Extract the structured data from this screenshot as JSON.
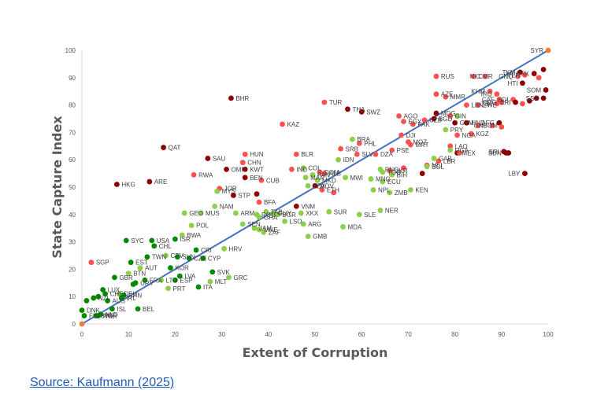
{
  "source": {
    "label": "Source: Kaufmann (2025)"
  },
  "colors": {
    "dark_red": "#8b0000",
    "red": "#ff5050",
    "light_green": "#8bd04a",
    "dark_green": "#008a00",
    "endpoint": "#ed7d31",
    "line": "#4472c4",
    "axis": "#d9d9d9"
  },
  "chart_data": {
    "type": "scatter",
    "title": "",
    "xlabel": "Extent of Corruption",
    "ylabel": "State Capture Index",
    "xlim": [
      0,
      100
    ],
    "ylim": [
      0,
      100
    ],
    "xticks": [
      0,
      10,
      20,
      30,
      40,
      50,
      60,
      70,
      80,
      90,
      100
    ],
    "yticks": [
      0,
      10,
      20,
      30,
      40,
      50,
      60,
      70,
      80,
      90,
      100
    ],
    "grid": false,
    "legend": "none",
    "trendline": {
      "from": [
        0,
        0
      ],
      "to": [
        100,
        100
      ]
    },
    "points": [
      {
        "label": "SYR",
        "x": 100,
        "y": 100,
        "c": "endpoint"
      },
      {
        "label": "",
        "x": 0,
        "y": 0,
        "c": "endpoint"
      },
      {
        "label": "BHR",
        "x": 32,
        "y": 82.5,
        "c": "dark_red"
      },
      {
        "label": "QAT",
        "x": 17.5,
        "y": 64.5,
        "c": "dark_red"
      },
      {
        "label": "SAU",
        "x": 27,
        "y": 60.5,
        "c": "dark_red"
      },
      {
        "label": "HKG",
        "x": 7.5,
        "y": 51,
        "c": "dark_red"
      },
      {
        "label": "ARE",
        "x": 14.5,
        "y": 52,
        "c": "dark_red"
      },
      {
        "label": "RWA",
        "x": 24,
        "y": 54.5,
        "c": "red"
      },
      {
        "label": "OMN",
        "x": 31,
        "y": 56.5,
        "c": "dark_red"
      },
      {
        "label": "HUN",
        "x": 35,
        "y": 62,
        "c": "red"
      },
      {
        "label": "CHN",
        "x": 34.5,
        "y": 59,
        "c": "red"
      },
      {
        "label": "KWT",
        "x": 35,
        "y": 56.5,
        "c": "dark_red"
      },
      {
        "label": "BEN",
        "x": 35,
        "y": 53.5,
        "c": "dark_red"
      },
      {
        "label": "CUB",
        "x": 38.5,
        "y": 52.5,
        "c": "red"
      },
      {
        "label": "JOR",
        "x": 29.5,
        "y": 49.5,
        "c": "red"
      },
      {
        "label": "MYS",
        "x": 29,
        "y": 48.5,
        "c": "light_green"
      },
      {
        "label": "STP",
        "x": 32.5,
        "y": 47,
        "c": "dark_red"
      },
      {
        "label": "BFA",
        "x": 38,
        "y": 44.5,
        "c": "red"
      },
      {
        "label": "",
        "x": 37.5,
        "y": 47.5,
        "c": "dark_red"
      },
      {
        "label": "BLR",
        "x": 46,
        "y": 62,
        "c": "red"
      },
      {
        "label": "IND",
        "x": 45,
        "y": 56.5,
        "c": "red"
      },
      {
        "label": "COL",
        "x": 47.5,
        "y": 57,
        "c": "light_green"
      },
      {
        "label": "KAZ",
        "x": 43,
        "y": 73,
        "c": "red"
      },
      {
        "label": "TUR",
        "x": 52,
        "y": 81,
        "c": "red"
      },
      {
        "label": "THA",
        "x": 57,
        "y": 78.5,
        "c": "dark_red"
      },
      {
        "label": "SWZ",
        "x": 60,
        "y": 77.5,
        "c": "dark_red"
      },
      {
        "label": "RUS",
        "x": 76,
        "y": 90.5,
        "c": "red"
      },
      {
        "label": "CMR",
        "x": 84,
        "y": 90.5,
        "c": "red"
      },
      {
        "label": "NIC",
        "x": 86.5,
        "y": 90.5,
        "c": "red"
      },
      {
        "label": "AGO",
        "x": 68,
        "y": 76,
        "c": "red"
      },
      {
        "label": "EGY",
        "x": 69,
        "y": 74,
        "c": "red"
      },
      {
        "label": "PAK",
        "x": 71,
        "y": 73,
        "c": "red"
      },
      {
        "label": "AZE",
        "x": 76,
        "y": 84,
        "c": "red"
      },
      {
        "label": "MMR",
        "x": 78,
        "y": 83,
        "c": "red"
      },
      {
        "label": "MDG",
        "x": 76,
        "y": 77,
        "c": "dark_red"
      },
      {
        "label": "UZB",
        "x": 73.5,
        "y": 74.5,
        "c": "red"
      },
      {
        "label": "BGD",
        "x": 75.5,
        "y": 75,
        "c": "dark_red"
      },
      {
        "label": "GIN",
        "x": 79,
        "y": 76,
        "c": "red"
      },
      {
        "label": "LBN",
        "x": 82.5,
        "y": 80,
        "c": "red"
      },
      {
        "label": "ZWE",
        "x": 85,
        "y": 80,
        "c": "red"
      },
      {
        "label": "KHM",
        "x": 87.5,
        "y": 85,
        "c": "red"
      },
      {
        "label": "IRQ",
        "x": 89,
        "y": 84,
        "c": "red"
      },
      {
        "label": "CAF",
        "x": 89.5,
        "y": 82,
        "c": "red"
      },
      {
        "label": "TKM",
        "x": 94,
        "y": 92,
        "c": "dark_red"
      },
      {
        "label": "GNQ",
        "x": 93.5,
        "y": 90.5,
        "c": "red"
      },
      {
        "label": "VEN",
        "x": 95,
        "y": 91,
        "c": "red"
      },
      {
        "label": "PRK",
        "x": 97,
        "y": 91.5,
        "c": "dark_red"
      },
      {
        "label": "",
        "x": 99,
        "y": 93,
        "c": "dark_red"
      },
      {
        "label": "",
        "x": 98,
        "y": 90,
        "c": "red"
      },
      {
        "label": "HTI",
        "x": 94.5,
        "y": 88,
        "c": "dark_red"
      },
      {
        "label": "SSD",
        "x": 99,
        "y": 82.5,
        "c": "dark_red"
      },
      {
        "label": "SOM",
        "x": 99.5,
        "y": 85.5,
        "c": "dark_red"
      },
      {
        "label": "COG",
        "x": 90,
        "y": 81,
        "c": "red"
      },
      {
        "label": "TJK",
        "x": 89,
        "y": 80.5,
        "c": "red"
      },
      {
        "label": "BDI",
        "x": 92.5,
        "y": 82,
        "c": "red"
      },
      {
        "label": "ERI",
        "x": 93,
        "y": 81,
        "c": "dark_red"
      },
      {
        "label": "",
        "x": 94.5,
        "y": 80.5,
        "c": "red"
      },
      {
        "label": "",
        "x": 96,
        "y": 81.5,
        "c": "dark_red"
      },
      {
        "label": "",
        "x": 97.5,
        "y": 82.5,
        "c": "dark_red"
      },
      {
        "label": "AFG",
        "x": 89.5,
        "y": 73.5,
        "c": "dark_red"
      },
      {
        "label": "",
        "x": 90,
        "y": 72,
        "c": "red"
      },
      {
        "label": "HND",
        "x": 82.5,
        "y": 73.5,
        "c": "dark_red"
      },
      {
        "label": "COM",
        "x": 85,
        "y": 72.5,
        "c": "red"
      },
      {
        "label": "GNB",
        "x": 88,
        "y": 72.5,
        "c": "red"
      },
      {
        "label": "GTM",
        "x": 80,
        "y": 73.5,
        "c": "dark_red"
      },
      {
        "label": "",
        "x": 80.5,
        "y": 76,
        "c": "light_green"
      },
      {
        "label": "PRY",
        "x": 78,
        "y": 71,
        "c": "light_green"
      },
      {
        "label": "NGA",
        "x": 80.5,
        "y": 69,
        "c": "red"
      },
      {
        "label": "KGZ",
        "x": 83.5,
        "y": 69.5,
        "c": "red"
      },
      {
        "label": "LAO",
        "x": 79,
        "y": 65,
        "c": "red"
      },
      {
        "label": "MEX",
        "x": 80.5,
        "y": 62.5,
        "c": "dark_red"
      },
      {
        "label": "UGA",
        "x": 79,
        "y": 63.5,
        "c": "light_green"
      },
      {
        "label": "",
        "x": 81,
        "y": 62.5,
        "c": "red"
      },
      {
        "label": "SRI",
        "x": 90.5,
        "y": 63,
        "c": "dark_red"
      },
      {
        "label": "SDN",
        "x": 91,
        "y": 62.5,
        "c": "dark_red"
      },
      {
        "label": "",
        "x": 91.5,
        "y": 62.5,
        "c": "dark_red"
      },
      {
        "label": "LBY",
        "x": 95,
        "y": 55,
        "c": "dark_red"
      },
      {
        "label": "GAB",
        "x": 75.5,
        "y": 60.5,
        "c": "light_green"
      },
      {
        "label": "LBR",
        "x": 76.5,
        "y": 59.5,
        "c": "red"
      },
      {
        "label": "MLI",
        "x": 74,
        "y": 58,
        "c": "red"
      },
      {
        "label": "BOL",
        "x": 74,
        "y": 57.5,
        "c": "light_green"
      },
      {
        "label": "",
        "x": 73,
        "y": 55,
        "c": "dark_red"
      },
      {
        "label": "KEN",
        "x": 70.5,
        "y": 49,
        "c": "light_green"
      },
      {
        "label": "DJI",
        "x": 68.5,
        "y": 69,
        "c": "red"
      },
      {
        "label": "MOZ",
        "x": 70,
        "y": 66.5,
        "c": "red"
      },
      {
        "label": "MRT",
        "x": 70.5,
        "y": 65.5,
        "c": "red"
      },
      {
        "label": "BRA",
        "x": 58,
        "y": 67.5,
        "c": "light_green"
      },
      {
        "label": "PHL",
        "x": 59.5,
        "y": 66,
        "c": "red"
      },
      {
        "label": "SRB",
        "x": 55.5,
        "y": 64,
        "c": "red"
      },
      {
        "label": "IDN",
        "x": 55,
        "y": 60,
        "c": "light_green"
      },
      {
        "label": "SLV",
        "x": 59,
        "y": 62,
        "c": "red"
      },
      {
        "label": "DZA",
        "x": 63,
        "y": 62,
        "c": "red"
      },
      {
        "label": "PSE",
        "x": 66.5,
        "y": 63.5,
        "c": "red"
      },
      {
        "label": "PNG",
        "x": 64,
        "y": 56.5,
        "c": "light_green"
      },
      {
        "label": "UKR",
        "x": 66,
        "y": 56,
        "c": "red"
      },
      {
        "label": "TGO",
        "x": 64.5,
        "y": 55.5,
        "c": "light_green"
      },
      {
        "label": "BIH",
        "x": 66.5,
        "y": 54.5,
        "c": "light_green"
      },
      {
        "label": "",
        "x": 69,
        "y": 57,
        "c": "red"
      },
      {
        "label": "MNG",
        "x": 62,
        "y": 53,
        "c": "light_green"
      },
      {
        "label": "ECU",
        "x": 64.5,
        "y": 52,
        "c": "light_green"
      },
      {
        "label": "NPL",
        "x": 62.5,
        "y": 49,
        "c": "light_green"
      },
      {
        "label": "ZMB",
        "x": 66,
        "y": 48,
        "c": "light_green"
      },
      {
        "label": "NER",
        "x": 64,
        "y": 41.5,
        "c": "light_green"
      },
      {
        "label": "MWI",
        "x": 56.5,
        "y": 53.5,
        "c": "light_green"
      },
      {
        "label": "ALB",
        "x": 52,
        "y": 55,
        "c": "red"
      },
      {
        "label": "MKD",
        "x": 50.5,
        "y": 52.5,
        "c": "light_green"
      },
      {
        "label": "DOM",
        "x": 51,
        "y": 55.5,
        "c": "red"
      },
      {
        "label": "PAN",
        "x": 49.5,
        "y": 54.5,
        "c": "light_green"
      },
      {
        "label": "MAR",
        "x": 48,
        "y": 53.5,
        "c": "light_green"
      },
      {
        "label": "MDV",
        "x": 50,
        "y": 50.5,
        "c": "dark_red"
      },
      {
        "label": "TZA",
        "x": 48.5,
        "y": 50.5,
        "c": "light_green"
      },
      {
        "label": "ETH",
        "x": 51.5,
        "y": 49,
        "c": "red"
      },
      {
        "label": "",
        "x": 54,
        "y": 48,
        "c": "red"
      },
      {
        "label": "VNM",
        "x": 46,
        "y": 43,
        "c": "dark_red"
      },
      {
        "label": "TAB",
        "x": 39.5,
        "y": 41,
        "c": "light_green"
      },
      {
        "label": "BGR",
        "x": 42,
        "y": 40,
        "c": "light_green"
      },
      {
        "label": "XKX",
        "x": 47,
        "y": 40.5,
        "c": "light_green"
      },
      {
        "label": "SUR",
        "x": 53,
        "y": 41,
        "c": "light_green"
      },
      {
        "label": "SLE",
        "x": 59.5,
        "y": 40,
        "c": "light_green"
      },
      {
        "label": "GUY",
        "x": 41,
        "y": 40.5,
        "c": "light_green"
      },
      {
        "label": "GHA",
        "x": 38,
        "y": 39,
        "c": "light_green"
      },
      {
        "label": "ROU",
        "x": 37.5,
        "y": 40,
        "c": "light_green"
      },
      {
        "label": "ARM",
        "x": 33,
        "y": 40.5,
        "c": "light_green"
      },
      {
        "label": "LSO",
        "x": 43.5,
        "y": 37.5,
        "c": "light_green"
      },
      {
        "label": "ARG",
        "x": 47.5,
        "y": 36.5,
        "c": "light_green"
      },
      {
        "label": "MDA",
        "x": 56,
        "y": 35.5,
        "c": "light_green"
      },
      {
        "label": "GMB",
        "x": 48.5,
        "y": 32,
        "c": "light_green"
      },
      {
        "label": "SEN",
        "x": 34.5,
        "y": 36.5,
        "c": "light_green"
      },
      {
        "label": "JAM",
        "x": 37,
        "y": 35,
        "c": "light_green"
      },
      {
        "label": "MNE",
        "x": 38,
        "y": 34.5,
        "c": "light_green"
      },
      {
        "label": "ZAF",
        "x": 39,
        "y": 33.5,
        "c": "light_green"
      },
      {
        "label": "NAM",
        "x": 28.5,
        "y": 43,
        "c": "light_green"
      },
      {
        "label": "GEO",
        "x": 22,
        "y": 40.5,
        "c": "light_green"
      },
      {
        "label": "MUS",
        "x": 25.5,
        "y": 40.5,
        "c": "light_green"
      },
      {
        "label": "POL",
        "x": 23.5,
        "y": 36,
        "c": "light_green"
      },
      {
        "label": "BWA",
        "x": 21.5,
        "y": 32.5,
        "c": "light_green"
      },
      {
        "label": "ISR",
        "x": 20,
        "y": 31,
        "c": "dark_green"
      },
      {
        "label": "SYC",
        "x": 9.5,
        "y": 30.5,
        "c": "dark_green"
      },
      {
        "label": "USA",
        "x": 15,
        "y": 30.5,
        "c": "dark_green"
      },
      {
        "label": "CHL",
        "x": 15.5,
        "y": 28.5,
        "c": "dark_green"
      },
      {
        "label": "HRV",
        "x": 30.5,
        "y": 27.5,
        "c": "light_green"
      },
      {
        "label": "CRI",
        "x": 24.5,
        "y": 27,
        "c": "dark_green"
      },
      {
        "label": "CYP",
        "x": 26,
        "y": 24,
        "c": "dark_green"
      },
      {
        "label": "CZE",
        "x": 23,
        "y": 24,
        "c": "dark_green"
      },
      {
        "label": "SVN",
        "x": 20.5,
        "y": 24.5,
        "c": "dark_green"
      },
      {
        "label": "CPV",
        "x": 18,
        "y": 25,
        "c": "light_green"
      },
      {
        "label": "TWN",
        "x": 14,
        "y": 24.5,
        "c": "dark_green"
      },
      {
        "label": "SGP",
        "x": 2,
        "y": 22.5,
        "c": "red"
      },
      {
        "label": "EST",
        "x": 10.5,
        "y": 22.5,
        "c": "dark_green"
      },
      {
        "label": "AUT",
        "x": 12.5,
        "y": 20.5,
        "c": "light_green"
      },
      {
        "label": "KOR",
        "x": 19,
        "y": 20.5,
        "c": "dark_green"
      },
      {
        "label": "BTN",
        "x": 10,
        "y": 18.5,
        "c": "light_green"
      },
      {
        "label": "GBR",
        "x": 7,
        "y": 17,
        "c": "dark_green"
      },
      {
        "label": "LVA",
        "x": 21,
        "y": 17.5,
        "c": "dark_green"
      },
      {
        "label": "ESP",
        "x": 20,
        "y": 16,
        "c": "dark_green"
      },
      {
        "label": "LTU",
        "x": 17,
        "y": 16,
        "c": "light_green"
      },
      {
        "label": "FRA",
        "x": 13.5,
        "y": 16,
        "c": "dark_green"
      },
      {
        "label": "URY",
        "x": 11.5,
        "y": 15,
        "c": "dark_green"
      },
      {
        "label": "",
        "x": 11,
        "y": 14.5,
        "c": "dark_green"
      },
      {
        "label": "SVK",
        "x": 28,
        "y": 19,
        "c": "dark_green"
      },
      {
        "label": "MLT",
        "x": 27.5,
        "y": 15.5,
        "c": "light_green"
      },
      {
        "label": "GRC",
        "x": 31.5,
        "y": 17,
        "c": "light_green"
      },
      {
        "label": "PRT",
        "x": 18.5,
        "y": 13,
        "c": "light_green"
      },
      {
        "label": "ITA",
        "x": 25,
        "y": 13.5,
        "c": "dark_green"
      },
      {
        "label": "LUX",
        "x": 4.5,
        "y": 12.5,
        "c": "dark_green"
      },
      {
        "label": "DEU",
        "x": 8,
        "y": 11,
        "c": "light_green"
      },
      {
        "label": "CAN",
        "x": 9,
        "y": 10.5,
        "c": "dark_green"
      },
      {
        "label": "CHE",
        "x": 5,
        "y": 11,
        "c": "dark_green"
      },
      {
        "label": "NZL",
        "x": 2.5,
        "y": 9.5,
        "c": "dark_green"
      },
      {
        "label": "",
        "x": 3.5,
        "y": 10,
        "c": "dark_green"
      },
      {
        "label": "",
        "x": 1,
        "y": 8.5,
        "c": "dark_green"
      },
      {
        "label": "AUS",
        "x": 5.5,
        "y": 8.5,
        "c": "dark_green"
      },
      {
        "label": "IRL",
        "x": 8.5,
        "y": 9.5,
        "c": "dark_green"
      },
      {
        "label": "ISL",
        "x": 6.5,
        "y": 5.5,
        "c": "dark_green"
      },
      {
        "label": "BEL",
        "x": 12,
        "y": 5.5,
        "c": "dark_green"
      },
      {
        "label": "DNK",
        "x": 0,
        "y": 5,
        "c": "dark_green"
      },
      {
        "label": "FIN",
        "x": 0.5,
        "y": 3,
        "c": "dark_green"
      },
      {
        "label": "NOR",
        "x": 3.5,
        "y": 3,
        "c": "dark_green"
      },
      {
        "label": "NLD",
        "x": 4,
        "y": 3.5,
        "c": "dark_green"
      },
      {
        "label": "SWE",
        "x": 3,
        "y": 3,
        "c": "dark_green"
      }
    ]
  }
}
